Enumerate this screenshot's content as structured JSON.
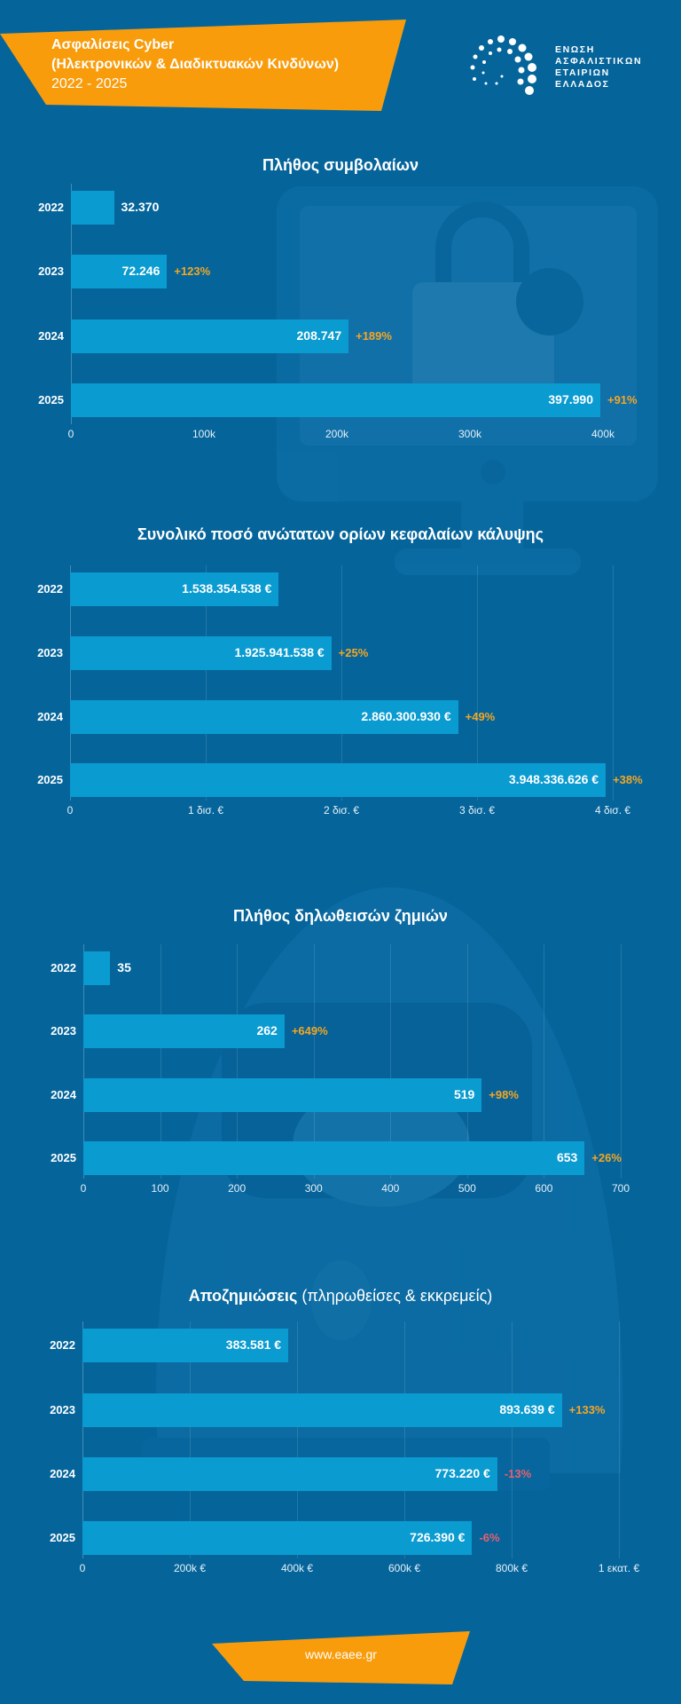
{
  "header": {
    "title_line1": "Ασφαλίσεις Cyber",
    "title_line2": "(Ηλεκτρονικών & Διαδικτυακών Κινδύνων)",
    "period": "2022 - 2025",
    "logo_lines": [
      "ΕΝΩΣΗ",
      "ΑΣΦΑΛΙΣΤΙΚΩΝ",
      "ΕΤΑΙΡΙΩΝ",
      "ΕΛΛΑΔΟΣ"
    ]
  },
  "colors": {
    "background": "#05659b",
    "bar": "#0a9bd1",
    "accent_orange": "#f99c0c",
    "increase": "#f5a623",
    "decrease": "#e8606e"
  },
  "chart_data": [
    {
      "type": "bar",
      "orientation": "horizontal",
      "title": "Πλήθος συμβολαίων",
      "categories": [
        "2022",
        "2023",
        "2024",
        "2025"
      ],
      "values": [
        32370,
        72246,
        208747,
        397990
      ],
      "value_labels": [
        "32.370",
        "72.246",
        "208.747",
        "397.990"
      ],
      "change_labels": [
        "",
        "+123%",
        "+189%",
        "+91%"
      ],
      "xlim": [
        0,
        400000
      ],
      "ticks": [
        0,
        100000,
        200000,
        300000,
        400000
      ],
      "tick_labels": [
        "0",
        "100k",
        "200k",
        "300k",
        "400k"
      ],
      "grid": false
    },
    {
      "type": "bar",
      "orientation": "horizontal",
      "title": "Συνολικό ποσό ανώτατων ορίων κεφαλαίων κάλυψης",
      "categories": [
        "2022",
        "2023",
        "2024",
        "2025"
      ],
      "values": [
        1538354538,
        1925941538,
        2860300930,
        3948336626
      ],
      "value_labels": [
        "1.538.354.538 €",
        "1.925.941.538 €",
        "2.860.300.930 €",
        "3.948.336.626 €"
      ],
      "change_labels": [
        "",
        "+25%",
        "+49%",
        "+38%"
      ],
      "xlim": [
        0,
        4000000000
      ],
      "ticks": [
        0,
        1000000000,
        2000000000,
        3000000000,
        4000000000
      ],
      "tick_labels": [
        "0",
        "1 δισ. €",
        "2 δισ. €",
        "3 δισ. €",
        "4 δισ. €"
      ],
      "grid": true
    },
    {
      "type": "bar",
      "orientation": "horizontal",
      "title": "Πλήθος δηλωθεισών ζημιών",
      "categories": [
        "2022",
        "2023",
        "2024",
        "2025"
      ],
      "values": [
        35,
        262,
        519,
        653
      ],
      "value_labels": [
        "35",
        "262",
        "519",
        "653"
      ],
      "change_labels": [
        "",
        "+649%",
        "+98%",
        "+26%"
      ],
      "xlim": [
        0,
        700
      ],
      "ticks": [
        0,
        100,
        200,
        300,
        400,
        500,
        600,
        700
      ],
      "tick_labels": [
        "0",
        "100",
        "200",
        "300",
        "400",
        "500",
        "600",
        "700"
      ],
      "grid": true
    },
    {
      "type": "bar",
      "orientation": "horizontal",
      "title": "Αποζημιώσεις",
      "title_suffix": "(πληρωθείσες & εκκρεμείς)",
      "categories": [
        "2022",
        "2023",
        "2024",
        "2025"
      ],
      "values": [
        383581,
        893639,
        773220,
        726390
      ],
      "value_labels": [
        "383.581 €",
        "893.639 €",
        "773.220 €",
        "726.390 €"
      ],
      "change_labels": [
        "",
        "+133%",
        "-13%",
        "-6%"
      ],
      "xlim": [
        0,
        1000000
      ],
      "ticks": [
        0,
        200000,
        400000,
        600000,
        800000,
        1000000
      ],
      "tick_labels": [
        "0",
        "200k €",
        "400k €",
        "600k €",
        "800k €",
        "1 εκατ. €"
      ],
      "grid": true
    }
  ],
  "footer": {
    "url": "www.eaee.gr"
  }
}
